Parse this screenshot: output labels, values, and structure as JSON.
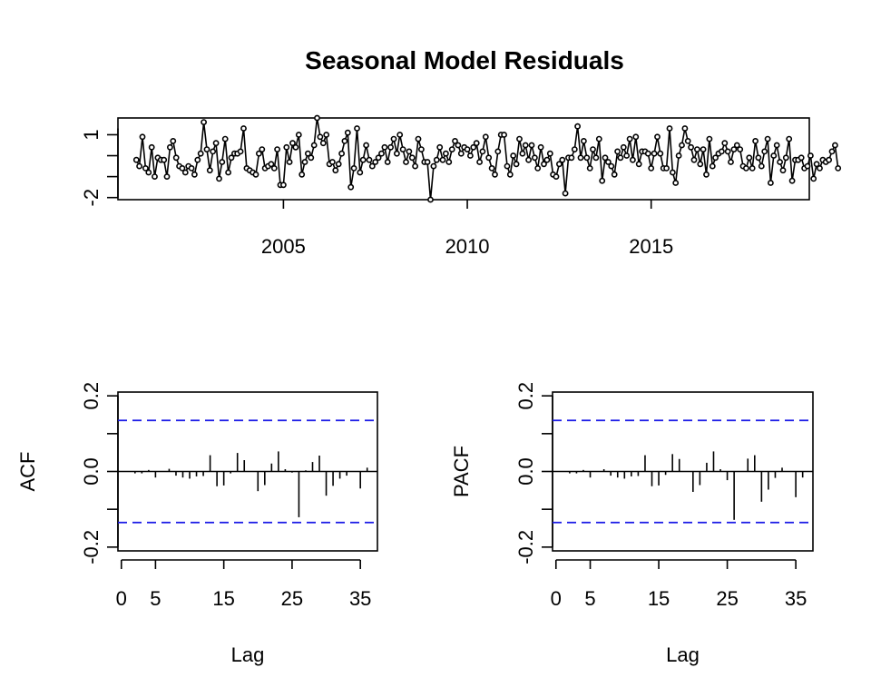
{
  "chart_data": [
    {
      "type": "line",
      "title": "Seasonal Model Residuals",
      "xlabel": "",
      "ylabel": "",
      "xlim": [
        2000.5,
        2019.3
      ],
      "ylim": [
        -2.1,
        1.8
      ],
      "x_ticks": [
        2005,
        2010,
        2015
      ],
      "x_tick_labels": [
        "2005",
        "2010",
        "2015"
      ],
      "y_ticks": [
        -2,
        -1,
        0,
        1,
        2
      ],
      "y_tick_labels": [
        "-2",
        "",
        "",
        "1",
        ""
      ],
      "start": 2001.0,
      "frequency": 12,
      "markers": "open-circle",
      "values": [
        -0.2,
        -0.5,
        0.9,
        -0.6,
        -0.8,
        0.4,
        -1.0,
        -0.1,
        -0.2,
        -0.2,
        -1.0,
        0.4,
        0.7,
        -0.1,
        -0.5,
        -0.6,
        -0.8,
        -0.5,
        -0.6,
        -0.9,
        -0.2,
        0.1,
        1.6,
        0.3,
        -0.7,
        0.2,
        0.6,
        -1.1,
        -0.3,
        0.8,
        -0.8,
        -0.1,
        0.1,
        0.1,
        0.2,
        1.3,
        -0.6,
        -0.7,
        -0.8,
        -0.9,
        0.1,
        0.3,
        -0.6,
        -0.5,
        -0.4,
        -0.6,
        0.3,
        -1.4,
        -1.4,
        0.4,
        -0.3,
        0.6,
        0.4,
        1.0,
        -0.9,
        -0.3,
        0.1,
        -0.1,
        0.5,
        1.8,
        0.9,
        0.6,
        1.0,
        -0.4,
        -0.3,
        -0.7,
        -0.4,
        0.1,
        0.7,
        1.1,
        -1.5,
        -0.6,
        1.3,
        -0.8,
        -0.2,
        0.5,
        -0.2,
        -0.5,
        -0.3,
        -0.1,
        0.1,
        0.4,
        -0.3,
        0.4,
        0.8,
        0.1,
        1.0,
        0.3,
        -0.3,
        0.2,
        -0.1,
        -0.5,
        0.8,
        0.3,
        -0.3,
        -0.3,
        -2.1,
        -0.5,
        -0.2,
        0.4,
        -0.2,
        0.1,
        -0.3,
        0.3,
        0.7,
        0.5,
        0.1,
        0.4,
        0.3,
        0.0,
        0.4,
        0.6,
        -0.3,
        0.2,
        0.9,
        -0.1,
        -0.6,
        -0.9,
        0.2,
        1.0,
        1.0,
        -0.5,
        -0.9,
        0.0,
        -0.4,
        0.8,
        0.1,
        0.5,
        -0.2,
        0.5,
        -0.1,
        -0.6,
        0.4,
        -0.4,
        -0.2,
        0.1,
        -0.9,
        -1.0,
        -0.4,
        -0.2,
        -1.8,
        -0.1,
        -0.1,
        0.3,
        1.4,
        -0.1,
        0.7,
        -0.1,
        -0.6,
        0.3,
        -0.1,
        0.8,
        -1.2,
        -0.1,
        -0.3,
        -0.5,
        -0.9,
        0.2,
        -0.1,
        0.4,
        0.0,
        0.8,
        -0.2,
        0.9,
        -0.4,
        0.2,
        0.2,
        0.1,
        -0.6,
        0.1,
        0.9,
        0.1,
        -0.6,
        -0.6,
        1.3,
        -0.8,
        -1.3,
        0.0,
        0.5,
        1.3,
        0.7,
        0.4,
        -0.2,
        0.3,
        -0.4,
        0.3,
        -0.9,
        0.8,
        -0.5,
        -0.1,
        0.1,
        0.2,
        0.6,
        0.2,
        -0.3,
        0.3,
        0.5,
        0.3,
        -0.5,
        -0.6,
        -0.1,
        -0.6,
        0.7,
        -0.1,
        -0.5,
        0.2,
        0.8,
        -1.3,
        0.0,
        0.5,
        -0.3,
        -0.7,
        -0.1,
        0.8,
        -1.2,
        -0.2,
        -0.2,
        -0.1,
        -0.6,
        -0.5,
        0.0,
        -1.1,
        -0.4,
        -0.6,
        -0.2,
        -0.3,
        -0.2,
        0.2,
        0.5,
        -0.6
      ]
    },
    {
      "type": "bar",
      "title": "",
      "xlabel": "Lag",
      "ylabel": "ACF",
      "xlim": [
        -0.5,
        37.5
      ],
      "ylim": [
        -0.21,
        0.21
      ],
      "x_ticks": [
        0,
        5,
        15,
        25,
        35
      ],
      "x_tick_labels": [
        "0",
        "5",
        "15",
        "25",
        "35"
      ],
      "y_ticks": [
        -0.2,
        -0.1,
        0.0,
        0.1,
        0.2
      ],
      "y_tick_labels": [
        "-0.2",
        "",
        "0.0",
        "",
        "0.2"
      ],
      "confidence_bound": 0.135,
      "lags": [
        1,
        2,
        3,
        4,
        5,
        6,
        7,
        8,
        9,
        10,
        11,
        12,
        13,
        14,
        15,
        16,
        17,
        18,
        19,
        20,
        21,
        22,
        23,
        24,
        25,
        26,
        27,
        28,
        29,
        30,
        31,
        32,
        33,
        34,
        35,
        36
      ],
      "values": [
        0.0,
        -0.005,
        -0.005,
        0.004,
        -0.016,
        0.0,
        0.007,
        -0.011,
        -0.016,
        -0.019,
        -0.013,
        -0.012,
        0.043,
        -0.039,
        -0.037,
        -0.005,
        0.049,
        0.03,
        0.0,
        -0.052,
        -0.036,
        0.021,
        0.053,
        0.006,
        -0.003,
        -0.121,
        0.003,
        0.025,
        0.042,
        -0.064,
        -0.038,
        -0.019,
        -0.011,
        0.0,
        -0.045,
        0.01
      ]
    },
    {
      "type": "bar",
      "title": "",
      "xlabel": "Lag",
      "ylabel": "PACF",
      "xlim": [
        -0.5,
        37.5
      ],
      "ylim": [
        -0.21,
        0.21
      ],
      "x_ticks": [
        0,
        5,
        15,
        25,
        35
      ],
      "x_tick_labels": [
        "0",
        "5",
        "15",
        "25",
        "35"
      ],
      "y_ticks": [
        -0.2,
        -0.1,
        0.0,
        0.1,
        0.2
      ],
      "y_tick_labels": [
        "-0.2",
        "",
        "0.0",
        "",
        "0.2"
      ],
      "confidence_bound": 0.135,
      "lags": [
        1,
        2,
        3,
        4,
        5,
        6,
        7,
        8,
        9,
        10,
        11,
        12,
        13,
        14,
        15,
        16,
        17,
        18,
        19,
        20,
        21,
        22,
        23,
        24,
        25,
        26,
        27,
        28,
        29,
        30,
        31,
        32,
        33,
        34,
        35,
        36
      ],
      "values": [
        0.0,
        -0.005,
        -0.005,
        0.004,
        -0.016,
        0.0,
        0.006,
        -0.011,
        -0.016,
        -0.019,
        -0.013,
        -0.012,
        0.043,
        -0.039,
        -0.037,
        -0.009,
        0.046,
        0.033,
        0.0,
        -0.054,
        -0.036,
        0.023,
        0.053,
        0.006,
        -0.023,
        -0.128,
        0.0,
        0.034,
        0.043,
        -0.08,
        -0.048,
        -0.017,
        0.01,
        0.0,
        -0.068,
        -0.016
      ]
    }
  ]
}
